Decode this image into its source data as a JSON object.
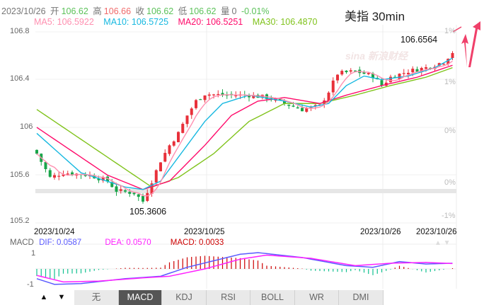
{
  "header": {
    "date": "2023/10/26",
    "open_label": "开",
    "open": "106.62",
    "high_label": "高",
    "high": "106.66",
    "close_label": "收",
    "close": "106.62",
    "low_label": "低",
    "low": "106.62",
    "vol_label": "量",
    "vol": "0",
    "change": "-0.01%"
  },
  "ma": {
    "ma5": "MA5: 106.5922",
    "ma10": "MA10: 106.5725",
    "ma20": "MA20: 106.5251",
    "ma30": "MA30: 106.4870"
  },
  "title": "美指 30min",
  "price_axis": [
    "106.8",
    "106.4",
    "106",
    "105.6",
    "105.2"
  ],
  "pct_axis": [
    "1%",
    "1%",
    "0%",
    "0%",
    "-1%"
  ],
  "max_label": "106.6564",
  "min_label": "105.3606",
  "dates": [
    "2023/10/24",
    "2023/10/25",
    "2023/10/26",
    "2023/10/26"
  ],
  "macd": {
    "label": "MACD",
    "dif": "DIF: 0.0587",
    "dea": "DEA: 0.0570",
    "macd": "MACD: 0.0033",
    "axis": [
      "1",
      "-1"
    ]
  },
  "tabs": [
    "无",
    "MACD",
    "KDJ",
    "RSI",
    "BOLL",
    "WR",
    "DMI"
  ],
  "active_tab": "MACD",
  "nav": {
    "up": "▲",
    "down": "▼"
  },
  "colors": {
    "up": "#e8303a",
    "down": "#1aa54a",
    "ma5": "#ff8fb0",
    "ma10": "#16b8e0",
    "ma20": "#ff0a6a",
    "ma30": "#80c31c",
    "dif": "#5a5aff",
    "dea": "#ff20ff",
    "hist_up": "#cc0000",
    "hist_down": "#10c090"
  },
  "chart_data": {
    "type": "candlestick",
    "close_keypoints": [
      [
        0,
        105.78
      ],
      [
        3,
        105.58
      ],
      [
        6,
        105.62
      ],
      [
        12,
        105.6
      ],
      [
        16,
        105.55
      ],
      [
        18,
        105.47
      ],
      [
        22,
        105.45
      ],
      [
        24,
        105.38
      ],
      [
        26,
        105.55
      ],
      [
        28,
        105.72
      ],
      [
        30,
        105.85
      ],
      [
        32,
        105.95
      ],
      [
        34,
        106.1
      ],
      [
        36,
        106.22
      ],
      [
        38,
        106.28
      ],
      [
        42,
        106.27
      ],
      [
        48,
        106.27
      ],
      [
        52,
        106.25
      ],
      [
        56,
        106.2
      ],
      [
        60,
        106.15
      ],
      [
        64,
        106.18
      ],
      [
        66,
        106.3
      ],
      [
        68,
        106.45
      ],
      [
        72,
        106.47
      ],
      [
        76,
        106.43
      ],
      [
        78,
        106.35
      ],
      [
        80,
        106.42
      ],
      [
        84,
        106.47
      ],
      [
        88,
        106.5
      ],
      [
        92,
        106.55
      ],
      [
        94,
        106.63
      ]
    ],
    "ma10": [
      [
        0,
        105.95
      ],
      [
        10,
        105.62
      ],
      [
        20,
        105.5
      ],
      [
        24,
        105.48
      ],
      [
        28,
        105.55
      ],
      [
        34,
        105.85
      ],
      [
        38,
        106.05
      ],
      [
        42,
        106.2
      ],
      [
        48,
        106.27
      ],
      [
        56,
        106.22
      ],
      [
        62,
        106.17
      ],
      [
        66,
        106.2
      ],
      [
        70,
        106.35
      ],
      [
        74,
        106.43
      ],
      [
        78,
        106.4
      ],
      [
        84,
        106.43
      ],
      [
        90,
        106.5
      ],
      [
        94,
        106.58
      ]
    ],
    "ma20": [
      [
        0,
        106.0
      ],
      [
        8,
        105.8
      ],
      [
        16,
        105.6
      ],
      [
        24,
        105.48
      ],
      [
        30,
        105.55
      ],
      [
        38,
        105.85
      ],
      [
        44,
        106.1
      ],
      [
        50,
        106.22
      ],
      [
        56,
        106.25
      ],
      [
        64,
        106.2
      ],
      [
        70,
        106.27
      ],
      [
        78,
        106.35
      ],
      [
        86,
        106.42
      ],
      [
        94,
        106.52
      ]
    ],
    "ma30": [
      [
        0,
        106.15
      ],
      [
        10,
        105.9
      ],
      [
        20,
        105.65
      ],
      [
        26,
        105.5
      ],
      [
        32,
        105.58
      ],
      [
        40,
        105.78
      ],
      [
        48,
        106.05
      ],
      [
        56,
        106.2
      ],
      [
        64,
        106.2
      ],
      [
        72,
        106.27
      ],
      [
        80,
        106.35
      ],
      [
        88,
        106.42
      ],
      [
        94,
        106.5
      ]
    ],
    "dif": [
      [
        0,
        -0.6
      ],
      [
        4,
        -0.95
      ],
      [
        10,
        -0.9
      ],
      [
        20,
        -0.6
      ],
      [
        28,
        -0.45
      ],
      [
        34,
        0.1
      ],
      [
        40,
        0.5
      ],
      [
        46,
        0.9
      ],
      [
        50,
        1.0
      ],
      [
        60,
        0.7
      ],
      [
        70,
        0.2
      ],
      [
        76,
        0.1
      ],
      [
        82,
        0.45
      ],
      [
        88,
        0.3
      ],
      [
        94,
        0.35
      ]
    ],
    "dea": [
      [
        0,
        -0.4
      ],
      [
        6,
        -0.8
      ],
      [
        14,
        -0.75
      ],
      [
        24,
        -0.55
      ],
      [
        30,
        -0.45
      ],
      [
        38,
        0.0
      ],
      [
        46,
        0.6
      ],
      [
        52,
        0.85
      ],
      [
        62,
        0.65
      ],
      [
        72,
        0.2
      ],
      [
        80,
        0.35
      ],
      [
        88,
        0.4
      ],
      [
        94,
        0.33
      ]
    ],
    "candles": 95,
    "ylim": [
      105.2,
      106.8
    ]
  }
}
